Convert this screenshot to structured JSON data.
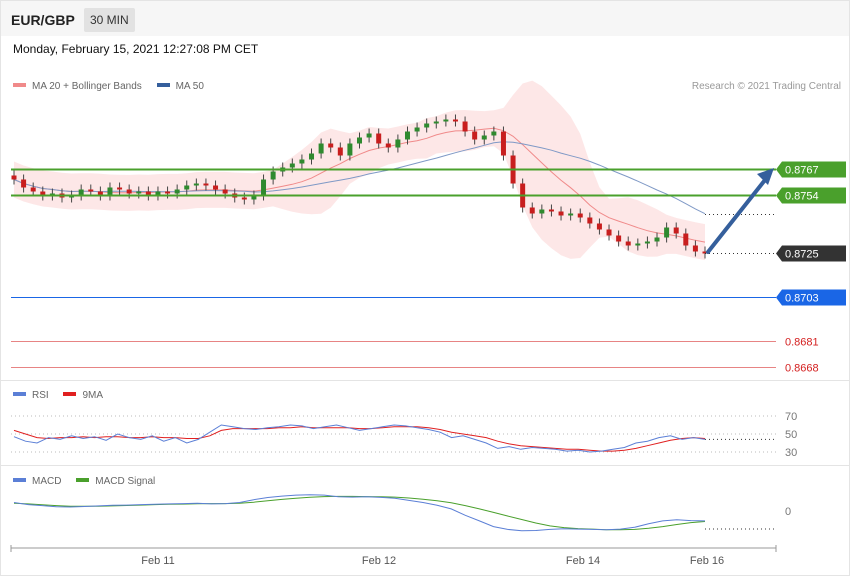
{
  "header": {
    "pair": "EUR/GBP",
    "timeframe": "30 MIN"
  },
  "datetime": "Monday, February 15, 2021 12:27:08 PM CET",
  "credit": "Research © 2021 Trading Central",
  "legends": {
    "main": [
      {
        "label": "MA 20 + Bollinger Bands",
        "color": "#f08a8a"
      },
      {
        "label": "MA 50",
        "color": "#355f9c"
      }
    ],
    "rsi": [
      {
        "label": "RSI",
        "color": "#5b7fd6"
      },
      {
        "label": "9MA",
        "color": "#e02020"
      }
    ],
    "macd": [
      {
        "label": "MACD",
        "color": "#5b7fd6"
      },
      {
        "label": "MACD Signal",
        "color": "#4aa02c"
      }
    ]
  },
  "chart_data": {
    "type": "candlestick",
    "instrument": "EUR/GBP",
    "interval": "30 MIN",
    "x_ticks": [
      "Feb 11",
      "Feb 12",
      "Feb 14",
      "Feb 16"
    ],
    "current_price": 0.8725,
    "levels": [
      {
        "label": "0.8767",
        "value": 0.8767,
        "color": "#4aa02c",
        "kind": "resistance"
      },
      {
        "label": "0.8754",
        "value": 0.8754,
        "color": "#4aa02c",
        "kind": "resistance"
      },
      {
        "label": "0.8725",
        "value": 0.8725,
        "color": "#333333",
        "kind": "last"
      },
      {
        "label": "0.8703",
        "value": 0.8703,
        "color": "#1a66e6",
        "kind": "pivot"
      },
      {
        "label": "0.8681",
        "value": 0.8681,
        "color": "#d42020",
        "kind": "support"
      },
      {
        "label": "0.8668",
        "value": 0.8668,
        "color": "#d42020",
        "kind": "support"
      }
    ],
    "close_series": [
      0.8762,
      0.8758,
      0.8756,
      0.8754,
      0.8755,
      0.8753,
      0.8754,
      0.8757,
      0.8756,
      0.8754,
      0.8758,
      0.8757,
      0.8755,
      0.8756,
      0.8754,
      0.8756,
      0.8755,
      0.8757,
      0.8759,
      0.876,
      0.8759,
      0.8757,
      0.8755,
      0.8753,
      0.8752,
      0.8754,
      0.8762,
      0.8766,
      0.8768,
      0.877,
      0.8772,
      0.8775,
      0.878,
      0.8778,
      0.8774,
      0.878,
      0.8783,
      0.8785,
      0.878,
      0.8778,
      0.8782,
      0.8786,
      0.8788,
      0.879,
      0.8791,
      0.8792,
      0.8791,
      0.8786,
      0.8782,
      0.8784,
      0.8786,
      0.8774,
      0.876,
      0.8748,
      0.8745,
      0.8747,
      0.8746,
      0.8744,
      0.8745,
      0.8743,
      0.874,
      0.8737,
      0.8734,
      0.8731,
      0.8729,
      0.873,
      0.8731,
      0.8733,
      0.8738,
      0.8735,
      0.8729,
      0.8726,
      0.8725
    ],
    "rsi": {
      "levels": [
        70,
        50,
        30
      ],
      "rsi_series": [
        47,
        42,
        40,
        46,
        44,
        48,
        45,
        47,
        43,
        50,
        46,
        44,
        48,
        42,
        46,
        40,
        44,
        52,
        60,
        58,
        56,
        55,
        57,
        58,
        60,
        59,
        56,
        58,
        60,
        57,
        54,
        56,
        58,
        60,
        59,
        57,
        55,
        52,
        46,
        48,
        44,
        40,
        34,
        36,
        33,
        35,
        34,
        33,
        31,
        32,
        30,
        31,
        33,
        35,
        40,
        42,
        46,
        48,
        44,
        46,
        44
      ],
      "ma_series": [
        54,
        50,
        46,
        45,
        46,
        46,
        47,
        46,
        47,
        47,
        46,
        46,
        47,
        46,
        46,
        45,
        45,
        48,
        54,
        56,
        56,
        56,
        56,
        57,
        57,
        58,
        57,
        57,
        57,
        57,
        56,
        56,
        57,
        58,
        58,
        58,
        57,
        55,
        52,
        50,
        48,
        46,
        42,
        39,
        37,
        36,
        35,
        34,
        33,
        33,
        32,
        31,
        31,
        32,
        34,
        37,
        40,
        43,
        45,
        46,
        45
      ]
    },
    "macd": {
      "levels": [
        0
      ],
      "macd_series": [
        0.0006,
        0.00045,
        0.00038,
        0.0003,
        0.00028,
        0.00032,
        0.00036,
        0.0004,
        0.00042,
        0.00045,
        0.00048,
        0.0005,
        0.00052,
        0.00055,
        0.0005,
        0.00052,
        0.0006,
        0.0008,
        0.00095,
        0.00105,
        0.00112,
        0.00115,
        0.00112,
        0.001,
        0.00098,
        0.001,
        0.00096,
        0.0009,
        0.00075,
        0.0006,
        0.0004,
        0.00015,
        -0.0003,
        -0.0007,
        -0.0011,
        -0.0013,
        -0.0014,
        -0.00138,
        -0.0013,
        -0.00125,
        -0.00128,
        -0.0013,
        -0.00132,
        -0.00128,
        -0.00115,
        -0.0009,
        -0.0007,
        -0.00062,
        -0.00068,
        -0.0007
      ],
      "signal_series": [
        0.00055,
        0.0005,
        0.00044,
        0.00038,
        0.00034,
        0.00033,
        0.00034,
        0.00036,
        0.00039,
        0.00042,
        0.00045,
        0.00047,
        0.00049,
        0.00051,
        0.00052,
        0.00052,
        0.00055,
        0.00062,
        0.00072,
        0.00082,
        0.0009,
        0.00097,
        0.00102,
        0.00103,
        0.00103,
        0.00102,
        0.00101,
        0.00098,
        0.00092,
        0.00083,
        0.00072,
        0.00058,
        0.00038,
        0.00015,
        -0.0001,
        -0.00035,
        -0.0006,
        -0.00085,
        -0.00105,
        -0.00117,
        -0.00124,
        -0.00128,
        -0.00132,
        -0.00133,
        -0.0013,
        -0.00122,
        -0.0011,
        -0.00095,
        -0.00082,
        -0.00074
      ]
    }
  }
}
